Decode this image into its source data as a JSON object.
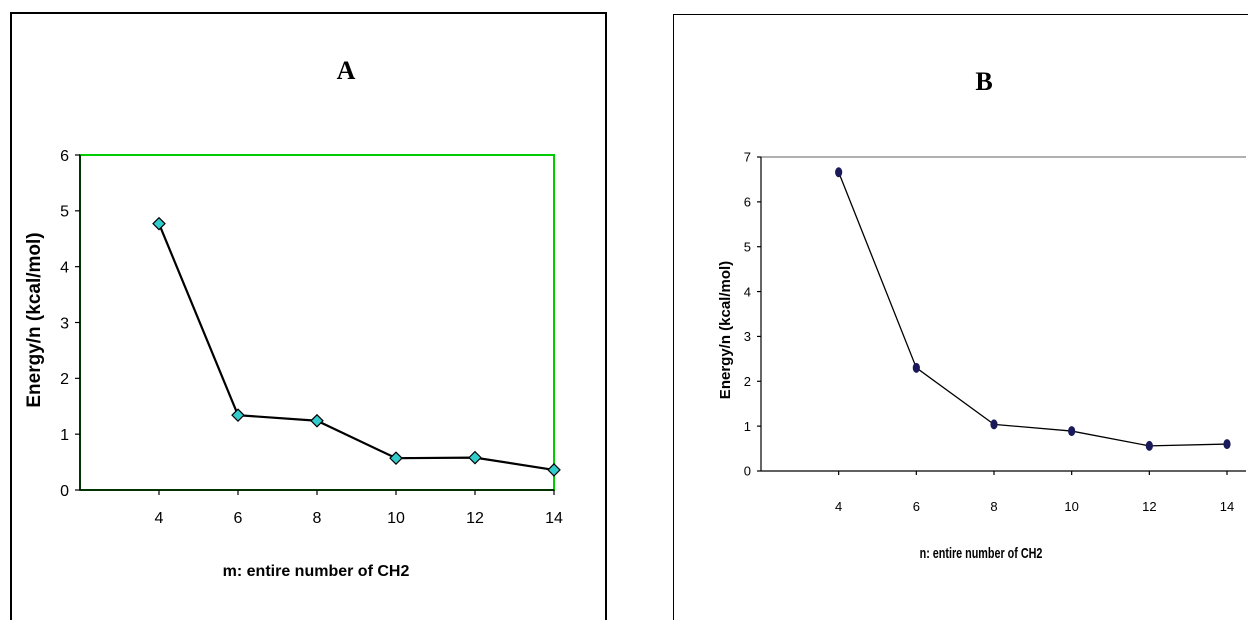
{
  "chart_data": [
    {
      "type": "line",
      "panel_label": "A",
      "title": "",
      "xlabel": "m: entire number of CH2",
      "ylabel": "Energy/n (kcal/mol)",
      "x": [
        4,
        6,
        8,
        10,
        12,
        14
      ],
      "series": [
        {
          "values": [
            4.77,
            1.34,
            1.24,
            0.57,
            0.58,
            0.36
          ]
        }
      ],
      "xticks": [
        4,
        6,
        8,
        10,
        12,
        14
      ],
      "yticks": [
        0,
        1,
        2,
        3,
        4,
        5,
        6
      ],
      "ylim": [
        0,
        6
      ],
      "grid": false,
      "legend": "none",
      "colors": {
        "line": "#000000",
        "marker_fill": "#33cccc",
        "marker_edge": "#000000",
        "plot_border": "#00cc00"
      }
    },
    {
      "type": "line",
      "panel_label": "B",
      "title": "",
      "xlabel": "n: entire number of CH2",
      "ylabel": "Energy/n (kcal/mol)",
      "x": [
        4,
        6,
        8,
        10,
        12,
        14
      ],
      "series": [
        {
          "values": [
            6.66,
            2.3,
            1.04,
            0.89,
            0.56,
            0.6
          ]
        }
      ],
      "xticks": [
        4,
        6,
        8,
        10,
        12,
        14
      ],
      "yticks": [
        0,
        1,
        2,
        3,
        4,
        5,
        6,
        7
      ],
      "ylim": [
        0,
        7
      ],
      "grid": false,
      "legend": "none",
      "colors": {
        "line": "#000000",
        "marker_fill": "#1a1a5a",
        "plot_border": "#808080"
      }
    }
  ]
}
